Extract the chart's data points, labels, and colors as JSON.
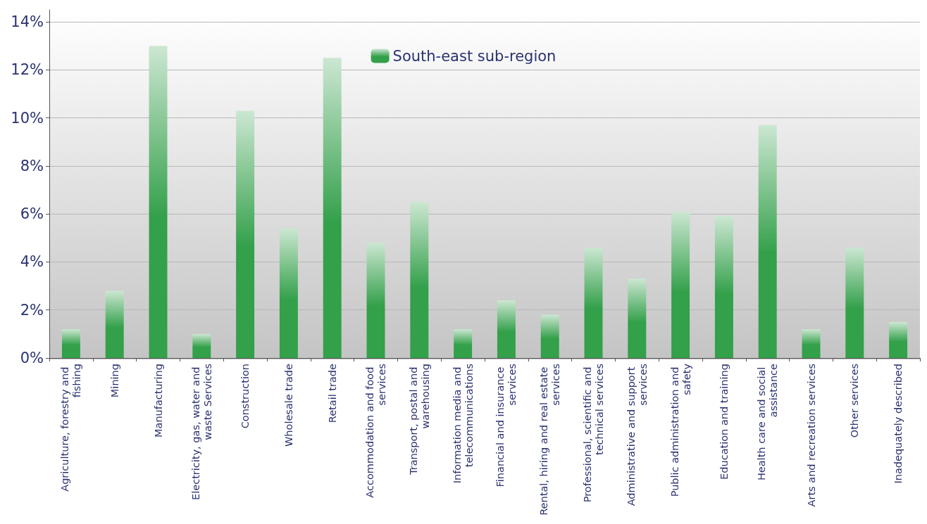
{
  "chart_data": {
    "type": "bar",
    "categories": [
      "Agriculture, forestry and fishing",
      "Mining",
      "Manufacturing",
      "Electricity, gas, water and waste Services",
      "Construction",
      "Wholesale trade",
      "Retail trade",
      "Accommodation and food services",
      "Transport, postal and warehousing",
      "Information media and telecommunications",
      "Financial and insurance services",
      "Rental, hiring and real estate services",
      "Professional, scientific and technical services",
      "Administrative and support services",
      "Public administration and safety",
      "Education and training",
      "Health care and social assistance",
      "Arts and recreation services",
      "Other services",
      "Inadequately described"
    ],
    "series": [
      {
        "name": "South-east sub-region",
        "color": "#33a04a",
        "values": [
          1.2,
          2.8,
          13.0,
          1.0,
          10.3,
          5.4,
          12.5,
          4.8,
          6.5,
          1.2,
          2.4,
          1.8,
          4.6,
          3.3,
          6.1,
          5.9,
          9.7,
          1.2,
          4.6,
          1.5
        ]
      }
    ],
    "ylim": [
      0,
      14.5
    ],
    "yticks": [
      {
        "value": 0,
        "label": "0%"
      },
      {
        "value": 2,
        "label": "2%"
      },
      {
        "value": 4,
        "label": "4%"
      },
      {
        "value": 6,
        "label": "6%"
      },
      {
        "value": 8,
        "label": "8%"
      },
      {
        "value": 10,
        "label": "10%"
      },
      {
        "value": 12,
        "label": "12%"
      },
      {
        "value": 14,
        "label": "14%"
      }
    ],
    "grid": "y",
    "legend": "top"
  }
}
